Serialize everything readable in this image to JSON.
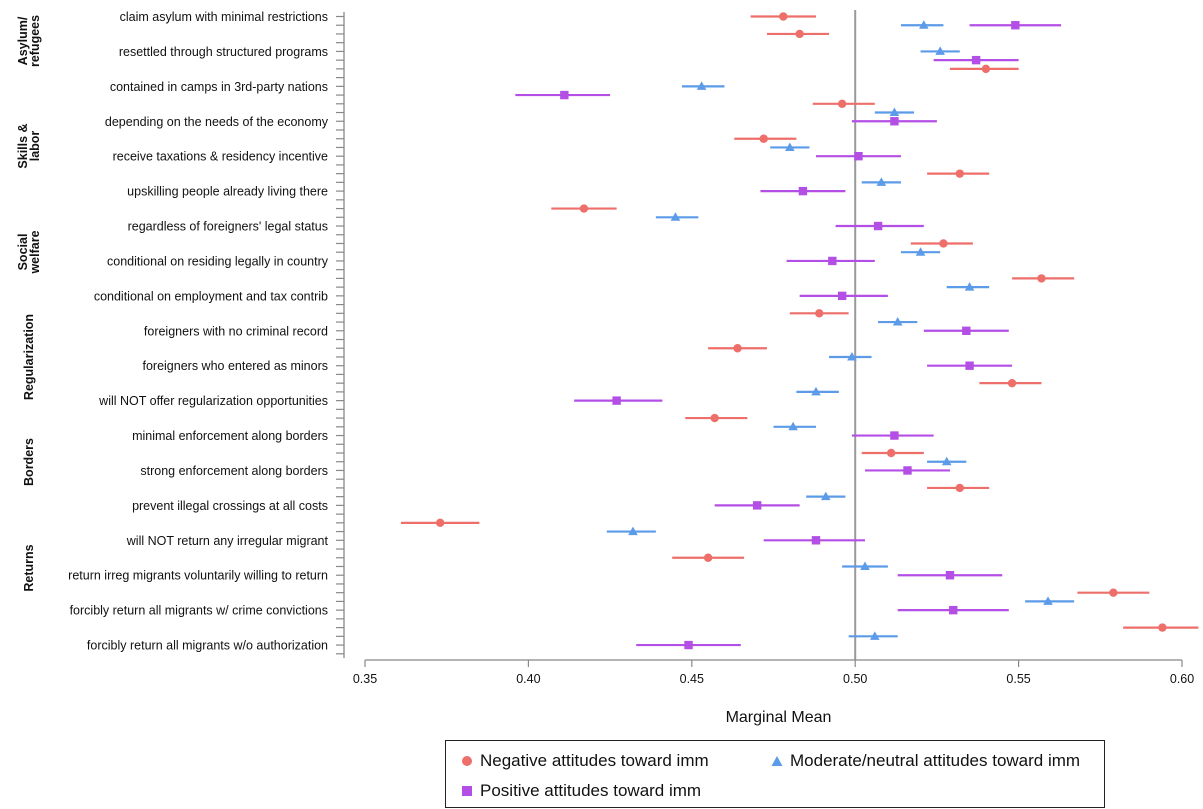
{
  "chart_data": {
    "type": "scatter",
    "xlabel": "Marginal Mean",
    "xlim": [
      0.35,
      0.6
    ],
    "x_ticks": [
      "0.35",
      "0.40",
      "0.45",
      "0.50",
      "0.55",
      "0.60"
    ],
    "reference_line": 0.5,
    "groups": [
      "Asylum/\nrefugees",
      "Skills &\nlabor",
      "Social\nwelfare",
      "Regularization",
      "Borders",
      "Returns"
    ],
    "row_labels": [
      "claim asylum with minimal restrictions",
      "resettled through structured programs",
      "contained in camps in 3rd-party nations",
      "depending on the needs of the economy",
      "receive taxations & residency incentive",
      "upskilling people already living there",
      "regardless of foreigners' legal status",
      "conditional on residing legally in country",
      "conditional on employment and tax contrib",
      "foreigners with no criminal record ",
      "foreigners who entered as minors",
      "will NOT offer regularization opportunities",
      "minimal enforcement along borders",
      "strong enforcement along borders",
      "prevent illegal crossings at all costs ",
      "will NOT return any irregular migrant",
      "return irreg migrants voluntarily willing to return",
      "forcibly return all migrants w/ crime convictions",
      "forcibly return all migrants w/o authorization"
    ],
    "series": [
      {
        "name": "Negative attitudes toward imm",
        "color": "#EE6F6A",
        "marker": "circle",
        "points": [
          {
            "slot": 0,
            "x": 0.478,
            "lo": 0.468,
            "hi": 0.488
          },
          {
            "slot": 2,
            "x": 0.483,
            "lo": 0.473,
            "hi": 0.492
          },
          {
            "slot": 6,
            "x": 0.54,
            "lo": 0.529,
            "hi": 0.55
          },
          {
            "slot": 10,
            "x": 0.496,
            "lo": 0.487,
            "hi": 0.506
          },
          {
            "slot": 14,
            "x": 0.472,
            "lo": 0.463,
            "hi": 0.482
          },
          {
            "slot": 18,
            "x": 0.532,
            "lo": 0.522,
            "hi": 0.541
          },
          {
            "slot": 22,
            "x": 0.417,
            "lo": 0.407,
            "hi": 0.427
          },
          {
            "slot": 26,
            "x": 0.527,
            "lo": 0.517,
            "hi": 0.536
          },
          {
            "slot": 30,
            "x": 0.557,
            "lo": 0.548,
            "hi": 0.567
          },
          {
            "slot": 34,
            "x": 0.489,
            "lo": 0.48,
            "hi": 0.498
          },
          {
            "slot": 38,
            "x": 0.464,
            "lo": 0.455,
            "hi": 0.473
          },
          {
            "slot": 42,
            "x": 0.548,
            "lo": 0.538,
            "hi": 0.557
          },
          {
            "slot": 46,
            "x": 0.457,
            "lo": 0.448,
            "hi": 0.467
          },
          {
            "slot": 50,
            "x": 0.511,
            "lo": 0.502,
            "hi": 0.521
          },
          {
            "slot": 54,
            "x": 0.532,
            "lo": 0.522,
            "hi": 0.541
          },
          {
            "slot": 58,
            "x": 0.373,
            "lo": 0.361,
            "hi": 0.385
          },
          {
            "slot": 62,
            "x": 0.455,
            "lo": 0.444,
            "hi": 0.466
          },
          {
            "slot": 66,
            "x": 0.579,
            "lo": 0.568,
            "hi": 0.59
          },
          {
            "slot": 70,
            "x": 0.594,
            "lo": 0.582,
            "hi": 0.605
          }
        ]
      },
      {
        "name": "Moderate/neutral attitudes toward imm",
        "color": "#5B9BE8",
        "marker": "triangle",
        "points": [
          {
            "slot": 1,
            "x": 0.521,
            "lo": 0.514,
            "hi": 0.527
          },
          {
            "slot": 4,
            "x": 0.526,
            "lo": 0.52,
            "hi": 0.532
          },
          {
            "slot": 8,
            "x": 0.453,
            "lo": 0.447,
            "hi": 0.46
          },
          {
            "slot": 11,
            "x": 0.512,
            "lo": 0.506,
            "hi": 0.518
          },
          {
            "slot": 15,
            "x": 0.48,
            "lo": 0.474,
            "hi": 0.486
          },
          {
            "slot": 19,
            "x": 0.508,
            "lo": 0.502,
            "hi": 0.514
          },
          {
            "slot": 23,
            "x": 0.445,
            "lo": 0.439,
            "hi": 0.452
          },
          {
            "slot": 27,
            "x": 0.52,
            "lo": 0.514,
            "hi": 0.526
          },
          {
            "slot": 31,
            "x": 0.535,
            "lo": 0.528,
            "hi": 0.541
          },
          {
            "slot": 35,
            "x": 0.513,
            "lo": 0.507,
            "hi": 0.519
          },
          {
            "slot": 39,
            "x": 0.499,
            "lo": 0.492,
            "hi": 0.505
          },
          {
            "slot": 43,
            "x": 0.488,
            "lo": 0.482,
            "hi": 0.495
          },
          {
            "slot": 47,
            "x": 0.481,
            "lo": 0.475,
            "hi": 0.488
          },
          {
            "slot": 51,
            "x": 0.528,
            "lo": 0.522,
            "hi": 0.534
          },
          {
            "slot": 55,
            "x": 0.491,
            "lo": 0.485,
            "hi": 0.497
          },
          {
            "slot": 59,
            "x": 0.432,
            "lo": 0.424,
            "hi": 0.439
          },
          {
            "slot": 63,
            "x": 0.503,
            "lo": 0.496,
            "hi": 0.51
          },
          {
            "slot": 67,
            "x": 0.559,
            "lo": 0.552,
            "hi": 0.567
          },
          {
            "slot": 71,
            "x": 0.506,
            "lo": 0.498,
            "hi": 0.513
          }
        ]
      },
      {
        "name": "Positive attitudes toward imm",
        "color": "#B44FE6",
        "marker": "square",
        "points": [
          {
            "slot": 1,
            "x": 0.549,
            "lo": 0.535,
            "hi": 0.563
          },
          {
            "slot": 5,
            "x": 0.537,
            "lo": 0.524,
            "hi": 0.55
          },
          {
            "slot": 9,
            "x": 0.411,
            "lo": 0.396,
            "hi": 0.425
          },
          {
            "slot": 12,
            "x": 0.512,
            "lo": 0.499,
            "hi": 0.525
          },
          {
            "slot": 16,
            "x": 0.501,
            "lo": 0.488,
            "hi": 0.514
          },
          {
            "slot": 20,
            "x": 0.484,
            "lo": 0.471,
            "hi": 0.497
          },
          {
            "slot": 24,
            "x": 0.507,
            "lo": 0.494,
            "hi": 0.521
          },
          {
            "slot": 28,
            "x": 0.493,
            "lo": 0.479,
            "hi": 0.506
          },
          {
            "slot": 32,
            "x": 0.496,
            "lo": 0.483,
            "hi": 0.51
          },
          {
            "slot": 36,
            "x": 0.534,
            "lo": 0.521,
            "hi": 0.547
          },
          {
            "slot": 40,
            "x": 0.535,
            "lo": 0.522,
            "hi": 0.548
          },
          {
            "slot": 44,
            "x": 0.427,
            "lo": 0.414,
            "hi": 0.441
          },
          {
            "slot": 48,
            "x": 0.512,
            "lo": 0.499,
            "hi": 0.524
          },
          {
            "slot": 52,
            "x": 0.516,
            "lo": 0.503,
            "hi": 0.529
          },
          {
            "slot": 56,
            "x": 0.47,
            "lo": 0.457,
            "hi": 0.483
          },
          {
            "slot": 60,
            "x": 0.488,
            "lo": 0.472,
            "hi": 0.503
          },
          {
            "slot": 64,
            "x": 0.529,
            "lo": 0.513,
            "hi": 0.545
          },
          {
            "slot": 68,
            "x": 0.53,
            "lo": 0.513,
            "hi": 0.547
          },
          {
            "slot": 72,
            "x": 0.449,
            "lo": 0.433,
            "hi": 0.465
          }
        ]
      }
    ],
    "legend_position": "bottom"
  }
}
